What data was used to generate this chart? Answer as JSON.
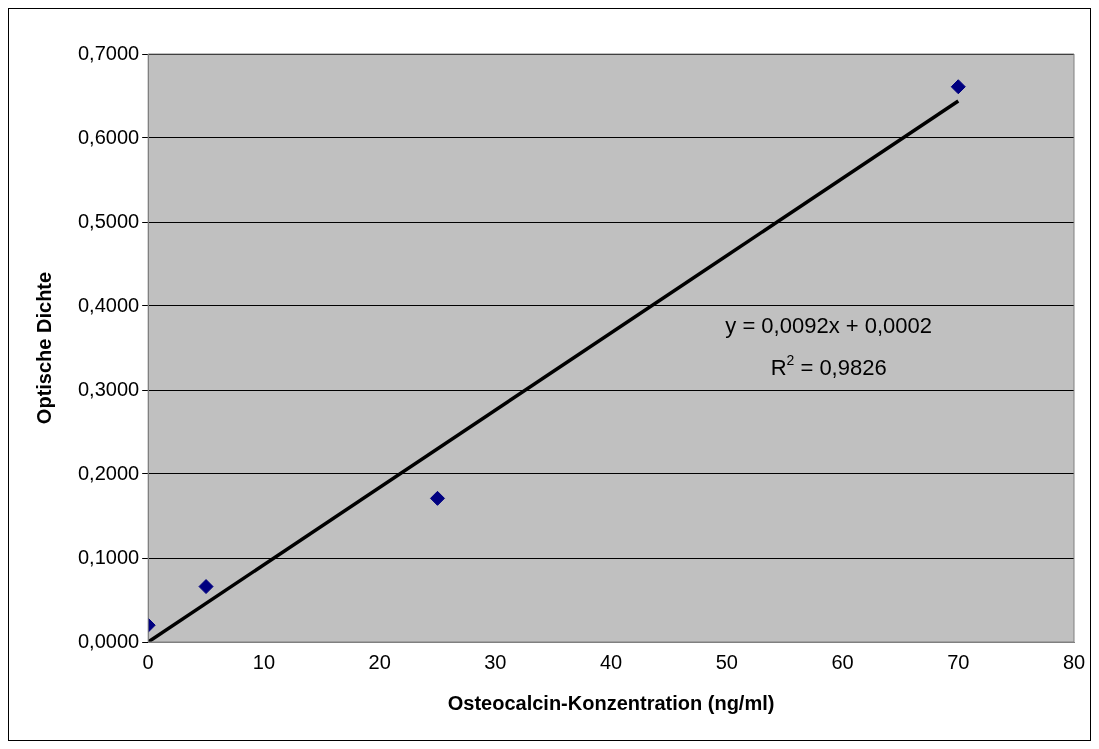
{
  "chart_data": {
    "type": "scatter",
    "xlabel": "Osteocalcin-Konzentration (ng/ml)",
    "ylabel": "Optische Dichte",
    "series": [
      {
        "type": "scatter",
        "color": "#000080",
        "x": [
          0,
          5,
          25,
          70
        ],
        "values": [
          0.02,
          0.066,
          0.171,
          0.661
        ],
        "marker": "diamond"
      },
      {
        "type": "line",
        "color": "#000000",
        "x": [
          0,
          70
        ],
        "values": [
          0,
          0.644
        ],
        "marker": "none",
        "line_style": "solid"
      }
    ],
    "xlim": [
      0,
      80
    ],
    "xticks": [
      0,
      10,
      20,
      30,
      40,
      50,
      60,
      70,
      80
    ],
    "ylim": [
      0,
      0.7
    ],
    "yticks": [
      {
        "value": 0,
        "label": "0,0000"
      },
      {
        "value": 0.1,
        "label": "0,1000"
      },
      {
        "value": 0.2,
        "label": "0,2000"
      },
      {
        "value": 0.3,
        "label": "0,3000"
      },
      {
        "value": 0.4,
        "label": "0,4000"
      },
      {
        "value": 0.5,
        "label": "0,5000"
      },
      {
        "value": 0.6,
        "label": "0,6000"
      },
      {
        "value": 0.7,
        "label": "0,7000"
      }
    ],
    "grid": "y",
    "legend": false,
    "annotations": [
      "y = 0,0092x + 0,0002",
      "R$^{2}$ = 0,9826"
    ]
  }
}
